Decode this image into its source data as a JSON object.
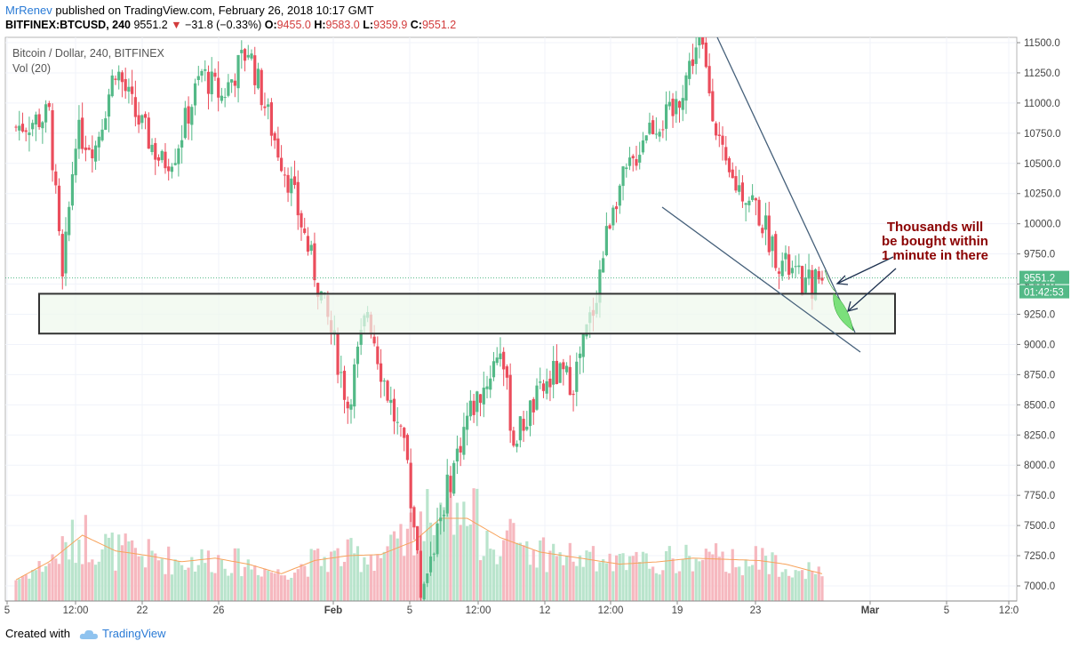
{
  "header": {
    "author": "MrRenev",
    "published_text": "published on TradingView.com, February 26, 2018 10:17 GMT",
    "symbol": "BITFINEX:BTCUSD, 240",
    "last": "9551.2",
    "change_arrow": "▼",
    "change": "−31.8 (−0.33%)",
    "o_label": "O:",
    "o_value": "9455.0",
    "h_label": "H:",
    "h_value": "9583.0",
    "l_label": "L:",
    "l_value": "9359.9",
    "c_label": "C:",
    "c_value": "9551.2"
  },
  "legend": {
    "series": "Bitcoin / Dollar, 240, BITFINEX",
    "volume": "Vol (20)"
  },
  "annotation": {
    "line1": "Thousands will",
    "line2": "be bought within",
    "line3": "1 minute in there"
  },
  "price_label": {
    "value": "9551.2",
    "countdown": "01:42:53"
  },
  "footer": {
    "created_with": "Created with",
    "brand": "TradingView"
  },
  "colors": {
    "up": "#53b987",
    "down": "#eb4d5c",
    "accent": "#2a7bd6",
    "annotation": "#8b0000"
  },
  "chart_data": {
    "type": "candlestick",
    "title": "Bitcoin / Dollar, 240, BITFINEX",
    "y_ticks": [
      7000,
      7250,
      7500,
      7750,
      8000,
      8250,
      8500,
      8750,
      9000,
      9250,
      9500,
      9750,
      10000,
      10250,
      10500,
      10750,
      11000,
      11250,
      11500
    ],
    "y_tick_labels": [
      "7000.0",
      "7250.0",
      "7500.0",
      "7750.0",
      "8000.0",
      "8250.0",
      "8500.0",
      "8750.0",
      "9000.0",
      "9250.0",
      "9500.0",
      "9750.0",
      "10000.0",
      "10250.0",
      "10500.0",
      "10750.0",
      "11000.0",
      "11250.0",
      "11500.0"
    ],
    "ylim": [
      6900,
      11550
    ],
    "x_ticks": [
      "5",
      "12:00",
      "22",
      "26",
      "Feb",
      "5",
      "12:00",
      "12",
      "12:00",
      "19",
      "23",
      "Mar",
      "5",
      "12:0"
    ],
    "support_zone": [
      9090,
      9420
    ],
    "current_price": 9551.2,
    "price_anchors": [
      [
        0,
        10800
      ],
      [
        10,
        10900
      ],
      [
        14,
        9500
      ],
      [
        18,
        10750
      ],
      [
        24,
        10650
      ],
      [
        30,
        11300
      ],
      [
        36,
        10900
      ],
      [
        44,
        10500
      ],
      [
        48,
        10600
      ],
      [
        56,
        11250
      ],
      [
        62,
        11050
      ],
      [
        70,
        11450
      ],
      [
        78,
        10700
      ],
      [
        83,
        10300
      ],
      [
        88,
        9800
      ],
      [
        96,
        9000
      ],
      [
        100,
        8500
      ],
      [
        106,
        9300
      ],
      [
        110,
        8800
      ],
      [
        118,
        8000
      ],
      [
        122,
        6950
      ],
      [
        130,
        7800
      ],
      [
        136,
        8400
      ],
      [
        142,
        8700
      ],
      [
        146,
        9000
      ],
      [
        150,
        8200
      ],
      [
        156,
        8500
      ],
      [
        162,
        8750
      ],
      [
        168,
        8700
      ],
      [
        174,
        9300
      ],
      [
        180,
        10200
      ],
      [
        186,
        10500
      ],
      [
        190,
        10800
      ],
      [
        198,
        10900
      ],
      [
        206,
        11550
      ],
      [
        214,
        10400
      ],
      [
        222,
        10200
      ],
      [
        230,
        9700
      ],
      [
        238,
        9480
      ],
      [
        243,
        9551
      ]
    ],
    "volume_ma_anchors": [
      [
        0,
        7050
      ],
      [
        10,
        7200
      ],
      [
        20,
        7420
      ],
      [
        30,
        7290
      ],
      [
        40,
        7250
      ],
      [
        50,
        7200
      ],
      [
        60,
        7230
      ],
      [
        70,
        7180
      ],
      [
        80,
        7100
      ],
      [
        90,
        7210
      ],
      [
        100,
        7250
      ],
      [
        110,
        7260
      ],
      [
        120,
        7370
      ],
      [
        128,
        7560
      ],
      [
        136,
        7560
      ],
      [
        146,
        7400
      ],
      [
        158,
        7280
      ],
      [
        170,
        7230
      ],
      [
        182,
        7180
      ],
      [
        194,
        7200
      ],
      [
        204,
        7230
      ],
      [
        214,
        7220
      ],
      [
        224,
        7210
      ],
      [
        232,
        7180
      ],
      [
        243,
        7100
      ]
    ]
  }
}
